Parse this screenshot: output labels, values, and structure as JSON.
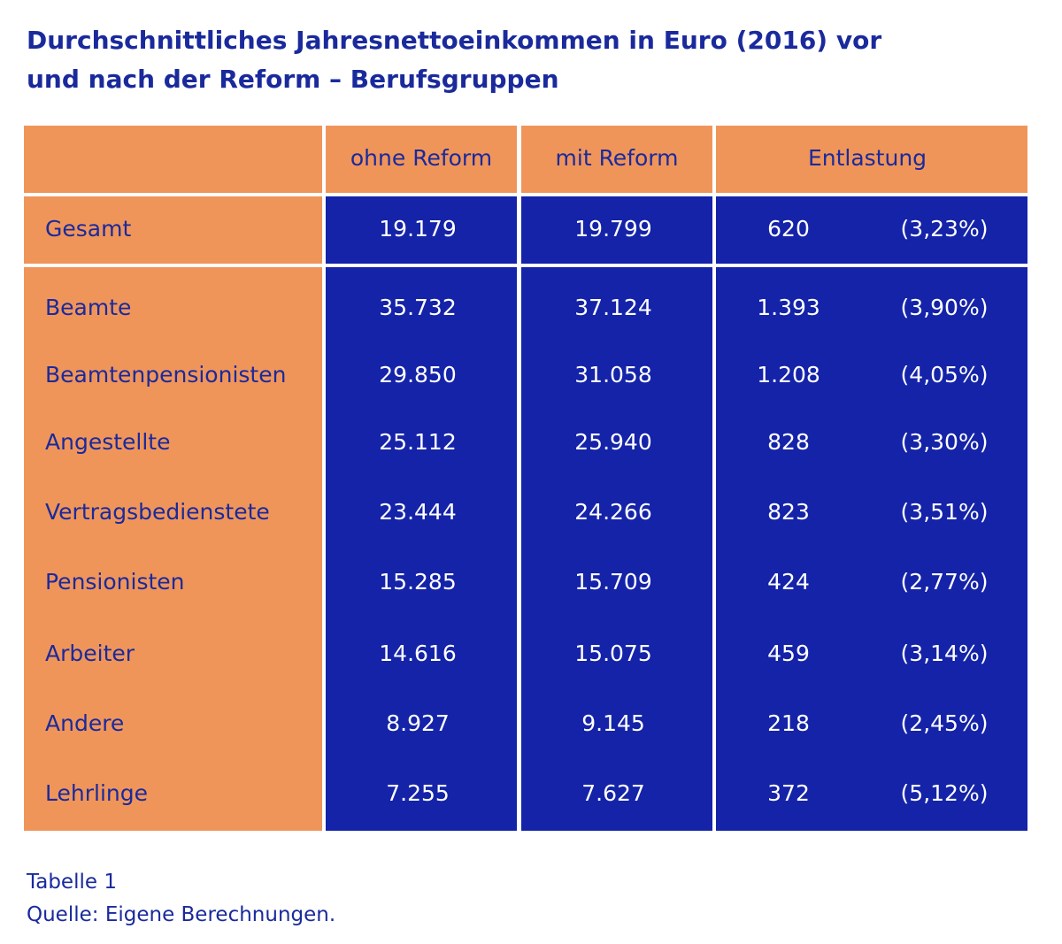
{
  "title": {
    "line1": "Durchschnittliches Jahresnettoeinkommen in Euro (2016) vor",
    "line2": "und nach der Reform – Berufsgruppen"
  },
  "table": {
    "headers": [
      "ohne Reform",
      "mit Reform",
      "Entlastung"
    ],
    "total": {
      "label": "Gesamt",
      "ohne": "19.179",
      "mit": "19.799",
      "entlastung": "620",
      "percent": "(3,23%)"
    },
    "rows": [
      {
        "label": "Beamte",
        "ohne": "35.732",
        "mit": "37.124",
        "entlastung": "1.393",
        "percent": "(3,90%)"
      },
      {
        "label": "Beamtenpensionisten",
        "ohne": "29.850",
        "mit": "31.058",
        "entlastung": "1.208",
        "percent": "(4,05%)"
      },
      {
        "label": "Angestellte",
        "ohne": "25.112",
        "mit": "25.940",
        "entlastung": "828",
        "percent": "(3,30%)"
      },
      {
        "label": "Vertragsbedienstete",
        "ohne": "23.444",
        "mit": "24.266",
        "entlastung": "823",
        "percent": "(3,51%)"
      },
      {
        "label": "Pensionisten",
        "ohne": "15.285",
        "mit": "15.709",
        "entlastung": "424",
        "percent": "(2,77%)"
      },
      {
        "label": "Arbeiter",
        "ohne": "14.616",
        "mit": "15.075",
        "entlastung": "459",
        "percent": "(3,14%)"
      },
      {
        "label": "Andere",
        "ohne": "8.927",
        "mit": "9.145",
        "entlastung": "218",
        "percent": "(2,45%)"
      },
      {
        "label": "Lehrlinge",
        "ohne": "7.255",
        "mit": "7.627",
        "entlastung": "372",
        "percent": "(5,12%)"
      }
    ]
  },
  "footer": {
    "table_label": "Tabelle 1",
    "source": "Quelle: Eigene Berechnungen."
  },
  "colors": {
    "orange": "#f0955a",
    "blue": "#1423a8",
    "title_text": "#1a2a9c"
  }
}
